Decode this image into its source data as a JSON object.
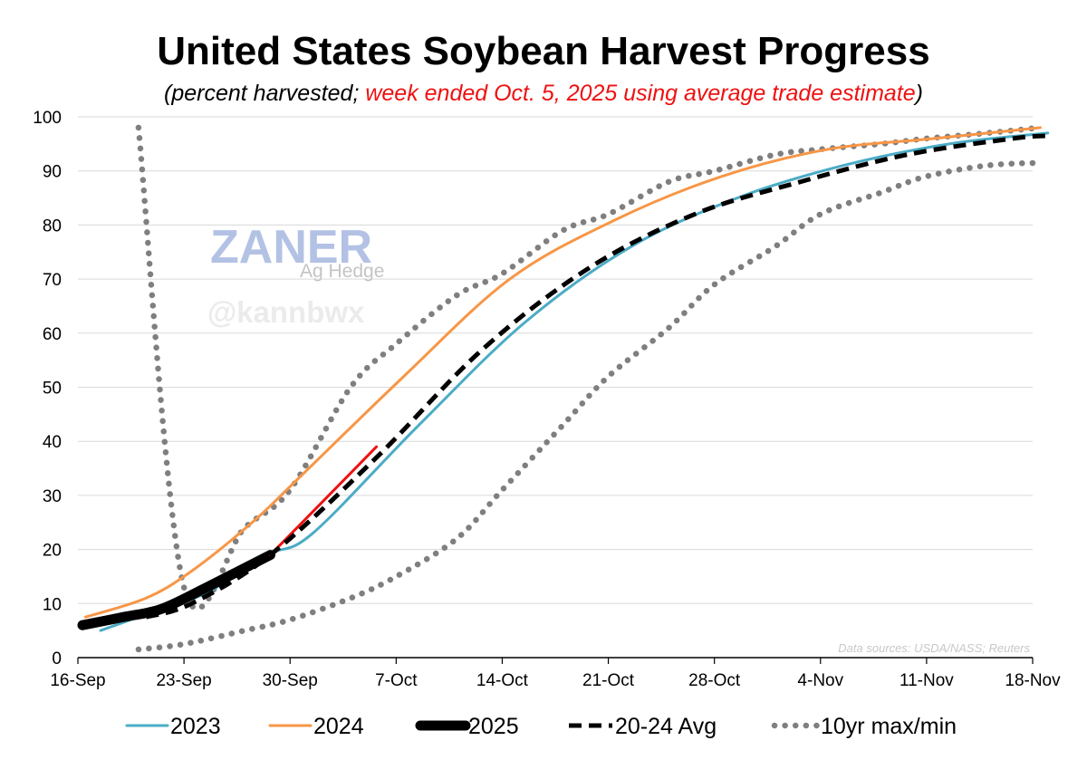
{
  "chart_data": {
    "type": "line",
    "title": "United States Soybean Harvest Progress",
    "subtitle_prefix": "(",
    "subtitle_black": "percent harvested; ",
    "subtitle_red": "week ended Oct. 5, 2025 using average trade estimate",
    "subtitle_suffix": ")",
    "xlabel": "",
    "ylabel": "",
    "x_unit": "days since 16-Sep",
    "xlim": [
      0,
      63
    ],
    "ylim": [
      0,
      100
    ],
    "y_ticks": [
      0,
      10,
      20,
      30,
      40,
      50,
      60,
      70,
      80,
      90,
      100
    ],
    "x_ticks": [
      {
        "day": 0,
        "label": "16-Sep"
      },
      {
        "day": 7,
        "label": "23-Sep"
      },
      {
        "day": 14,
        "label": "30-Sep"
      },
      {
        "day": 21,
        "label": "7-Oct"
      },
      {
        "day": 28,
        "label": "14-Oct"
      },
      {
        "day": 35,
        "label": "21-Oct"
      },
      {
        "day": 42,
        "label": "28-Oct"
      },
      {
        "day": 49,
        "label": "4-Nov"
      },
      {
        "day": 56,
        "label": "11-Nov"
      },
      {
        "day": 63,
        "label": "18-Nov"
      }
    ],
    "grid": true,
    "series": [
      {
        "name": "10yr max/min",
        "style": "dotted",
        "color": "#7f7f7f",
        "x": [
          4,
          7,
          11,
          14,
          18,
          21,
          25,
          28,
          32,
          35,
          39,
          42,
          46,
          49,
          53,
          56,
          60,
          63.5
        ],
        "y": [
          98,
          13,
          24,
          31,
          50,
          58,
          67,
          71,
          79,
          82,
          88,
          90,
          93,
          94,
          95,
          96,
          97,
          98
        ]
      },
      {
        "name": "10yr max/min",
        "style": "dotted",
        "color": "#7f7f7f",
        "x": [
          4,
          7,
          11,
          14,
          18,
          21,
          25,
          28,
          32,
          35,
          39,
          42,
          46,
          49,
          53,
          56,
          60,
          63.5
        ],
        "y": [
          1.5,
          2.5,
          5,
          7,
          11,
          15,
          22,
          31,
          43,
          52,
          61,
          69,
          76,
          82,
          86,
          89,
          91,
          91.5
        ]
      },
      {
        "name": "2023",
        "style": "solid",
        "color": "#4bacc6",
        "x": [
          1.5,
          4.5,
          8.5,
          12.5,
          15.5,
          22.5,
          29.5,
          36.5,
          43.5,
          50.5,
          57.5,
          64
        ],
        "y": [
          5,
          8,
          12,
          19,
          23,
          43,
          62,
          76,
          85,
          91,
          95,
          97
        ]
      },
      {
        "name": "2024",
        "style": "solid",
        "color": "#f79646",
        "x": [
          0.5,
          4.5,
          7.5,
          11.5,
          14.5,
          21.5,
          28.5,
          35.5,
          42.5,
          49.5,
          56.5,
          63.5
        ],
        "y": [
          7.5,
          11,
          16,
          25,
          33,
          52,
          70,
          81,
          89,
          94,
          96,
          98
        ]
      },
      {
        "name": "2025",
        "style": "solid-thick",
        "color": "#000000",
        "x": [
          0.3,
          3,
          5.5,
          8.5,
          12.7
        ],
        "y": [
          6,
          7.5,
          9,
          13,
          19
        ]
      },
      {
        "name": "2025 estimate",
        "style": "solid",
        "color": "#ee1111",
        "x": [
          12.7,
          19.7
        ],
        "y": [
          19,
          39
        ]
      },
      {
        "name": "20-24 Avg",
        "style": "dashed",
        "color": "#000000",
        "x": [
          4.5,
          7.5,
          12.7,
          19.7,
          26.7,
          33.7,
          40.7,
          47.7,
          54.7,
          61.7,
          64
        ],
        "y": [
          7.5,
          10,
          19,
          37,
          57,
          72,
          82,
          88,
          93,
          96,
          96.5
        ]
      }
    ],
    "legend": [
      {
        "label": "2023",
        "color": "#4bacc6",
        "style": "solid"
      },
      {
        "label": "2024",
        "color": "#f79646",
        "style": "solid"
      },
      {
        "label": "2025",
        "color": "#000000",
        "style": "solid-thick"
      },
      {
        "label": "20-24 Avg",
        "color": "#000000",
        "style": "dashed"
      },
      {
        "label": "10yr max/min",
        "color": "#7f7f7f",
        "style": "dotted"
      }
    ],
    "legend_position": "bottom"
  },
  "watermark": {
    "logo_text": "ZANER",
    "logo_subtext": "Ag Hedge",
    "handle": "@kannbwx"
  },
  "source_note": "Data sources: USDA/NASS; Reuters"
}
